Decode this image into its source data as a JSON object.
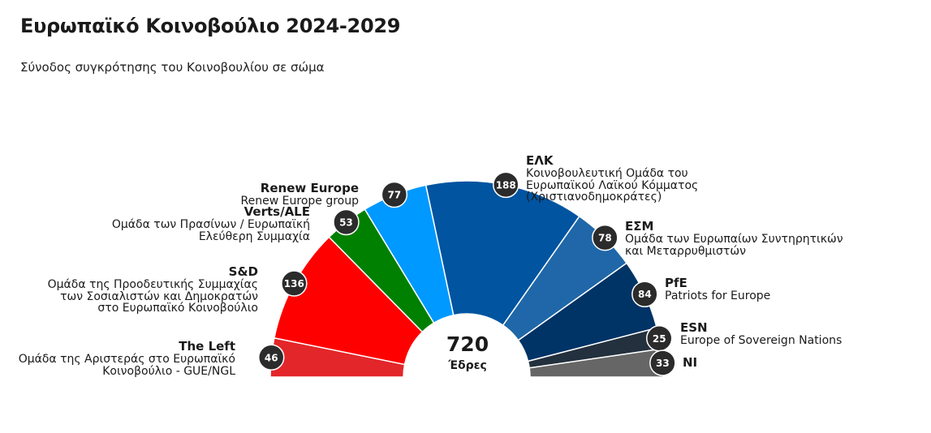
{
  "header": {
    "title": "Ευρωπαϊκό Κοινοβούλιο 2024-2029",
    "subtitle": "Σύνοδος συγκρότησης του Κοινοβουλίου σε σώμα"
  },
  "chart_data": {
    "type": "pie",
    "variant": "parliament-hemicycle",
    "total": 720,
    "total_label": "Έδρες",
    "series": [
      {
        "name": "The Left",
        "full_name": [
          "Ομάδα της Αριστεράς στο Ευρωπαϊκό",
          "Κοινοβούλιο - GUE/NGL"
        ],
        "value": 46,
        "color": "#e3262a"
      },
      {
        "name": "S&D",
        "full_name": [
          "Ομάδα της Προοδευτικής Συμμαχίας",
          "των Σοσιαλιστών και Δημοκρατών",
          "στο Ευρωπαϊκό Κοινοβούλιο"
        ],
        "value": 136,
        "color": "#ff0000"
      },
      {
        "name": "Verts/ALE",
        "full_name": [
          "Ομάδα των Πρασίνων / Ευρωπαϊκή",
          "Ελεύθερη Συμμαχία"
        ],
        "value": 53,
        "color": "#008000"
      },
      {
        "name": "Renew Europe",
        "full_name": [
          "Renew Europe group"
        ],
        "value": 77,
        "color": "#0099ff"
      },
      {
        "name": "ΕΛΚ",
        "full_name": [
          "Κοινοβουλευτική Ομάδα του",
          "Ευρωπαϊκού Λαϊκού Κόμματος",
          "(Χριστιανοδημοκράτες)"
        ],
        "value": 188,
        "color": "#0054a0"
      },
      {
        "name": "ΕΣΜ",
        "full_name": [
          "Ομάδα των Ευρωπαίων Συντηρητικών",
          "και Μεταρρυθμιστών"
        ],
        "value": 78,
        "color": "#1f67a8"
      },
      {
        "name": "PfE",
        "full_name": [
          "Patriots for Europe"
        ],
        "value": 84,
        "color": "#003366"
      },
      {
        "name": "ESN",
        "full_name": [
          "Europe of Sovereign Nations"
        ],
        "value": 25,
        "color": "#23303d"
      },
      {
        "name": "NI",
        "full_name": [],
        "value": 33,
        "color": "#666666"
      }
    ]
  }
}
